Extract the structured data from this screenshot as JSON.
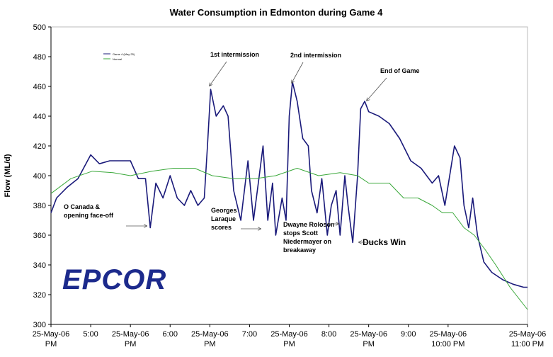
{
  "chart_data": {
    "type": "line",
    "title": "Water Consumption in Edmonton during Game 4",
    "y_label": "Flow (ML/d)",
    "xlim": [
      17,
      23
    ],
    "xticks": [
      {
        "value": 17.0,
        "label": "25-May-06 PM"
      },
      {
        "value": 17.5,
        "label": "5:00"
      },
      {
        "value": 18.0,
        "label": "25-May-06 PM"
      },
      {
        "value": 18.5,
        "label": "6:00"
      },
      {
        "value": 19.0,
        "label": "25-May-06 PM"
      },
      {
        "value": 19.5,
        "label": "7:00"
      },
      {
        "value": 20.0,
        "label": "25-May-06 PM"
      },
      {
        "value": 20.5,
        "label": "8:00"
      },
      {
        "value": 21.0,
        "label": "25-May-06 PM"
      },
      {
        "value": 21.5,
        "label": "9:00"
      },
      {
        "value": 22.0,
        "label": "25-May-06 10:00 PM"
      },
      {
        "value": 23.0,
        "label": "25-May-06 11:00 PM"
      }
    ],
    "ylim": [
      300,
      500
    ],
    "yticks": [
      300,
      320,
      340,
      360,
      380,
      400,
      420,
      440,
      460,
      480,
      500
    ],
    "grid": false,
    "legend": "upper left",
    "series": [
      {
        "name": "Game 4 (May 25)",
        "color": "#1a1a7a",
        "x": [
          17.0,
          17.07,
          17.2,
          17.34,
          17.5,
          17.61,
          17.74,
          17.87,
          18.0,
          18.1,
          18.19,
          18.25,
          18.32,
          18.41,
          18.5,
          18.59,
          18.68,
          18.76,
          18.85,
          18.93,
          18.97,
          19.01,
          19.08,
          19.17,
          19.23,
          19.3,
          19.39,
          19.48,
          19.55,
          19.61,
          19.67,
          19.73,
          19.79,
          19.83,
          19.91,
          19.96,
          20.0,
          20.04,
          20.1,
          20.17,
          20.24,
          20.28,
          20.35,
          20.41,
          20.48,
          20.53,
          20.59,
          20.64,
          20.7,
          20.74,
          20.8,
          20.86,
          20.9,
          20.95,
          21.0,
          21.13,
          21.26,
          21.39,
          21.53,
          21.66,
          21.8,
          21.88,
          21.96,
          22.02,
          22.08,
          22.15,
          22.2,
          22.26,
          22.31,
          22.37,
          22.45,
          22.55,
          22.69,
          22.82,
          22.95,
          23.0
        ],
        "values": [
          375,
          385,
          392,
          398,
          414,
          408,
          410,
          410,
          410,
          398,
          398,
          365,
          395,
          385,
          400,
          385,
          380,
          390,
          380,
          385,
          420,
          458,
          440,
          447,
          440,
          390,
          370,
          410,
          370,
          395,
          420,
          370,
          395,
          360,
          385,
          370,
          440,
          463,
          450,
          425,
          420,
          390,
          375,
          398,
          360,
          380,
          390,
          360,
          400,
          380,
          355,
          400,
          445,
          450,
          443,
          440,
          435,
          425,
          410,
          405,
          395,
          400,
          380,
          400,
          420,
          412,
          380,
          365,
          385,
          360,
          342,
          335,
          330,
          327,
          325,
          325
        ]
      },
      {
        "name": "Normal",
        "color": "#3aa83a",
        "x": [
          17.0,
          17.25,
          17.52,
          17.78,
          18.0,
          18.27,
          18.54,
          18.81,
          19.03,
          19.3,
          19.57,
          19.83,
          20.1,
          20.37,
          20.64,
          20.86,
          21.0,
          21.26,
          21.44,
          21.62,
          21.8,
          21.93,
          22.06,
          22.2,
          22.33,
          22.47,
          22.6,
          22.78,
          23.0
        ],
        "values": [
          388,
          398,
          403,
          402,
          400,
          403,
          405,
          405,
          400,
          398,
          398,
          400,
          405,
          400,
          402,
          400,
          395,
          395,
          385,
          385,
          380,
          375,
          375,
          365,
          360,
          350,
          340,
          325,
          310
        ]
      }
    ],
    "annotations": [
      {
        "text": [
          "1st intermission"
        ]
      },
      {
        "text": [
          "2nd intermission"
        ]
      },
      {
        "text": [
          "End of Game"
        ]
      },
      {
        "text": [
          "O Canada &",
          "opening face-off"
        ]
      },
      {
        "text": [
          "Georges",
          "Laraque",
          "scores"
        ]
      },
      {
        "text": [
          "Dwayne Roloson",
          "stops Scott",
          "Niedermayer on",
          "breakaway"
        ]
      },
      {
        "text": [
          "Ducks Win"
        ]
      }
    ],
    "logo": "EPCOR"
  }
}
